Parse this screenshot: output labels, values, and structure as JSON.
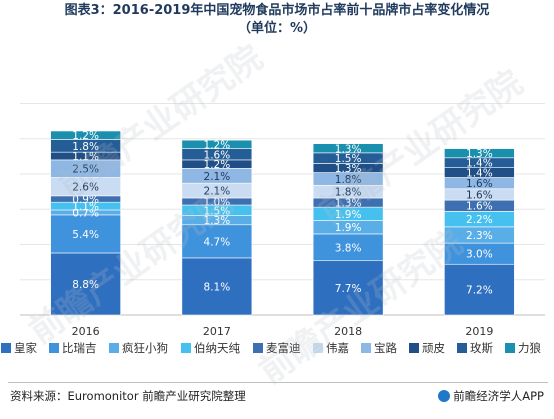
{
  "title_line1": "图表3：2016-2019年中国宠物食品市场市占率前十品牌市占率变化情况",
  "title_line2": "（单位：%）",
  "source": "资料来源：Euromonitor 前瞻产业研究院整理",
  "brand": "前瞻经济学人APP",
  "watermark": "前瞻产业研究院",
  "chart_data": {
    "type": "bar",
    "stacked": true,
    "categories": [
      "2016",
      "2017",
      "2018",
      "2019"
    ],
    "ylim": [
      0,
      30
    ],
    "grid": true,
    "legend_position": "bottom",
    "series": [
      {
        "name": "皇家",
        "color": "#2f6fbf",
        "values": [
          8.8,
          8.1,
          7.7,
          7.2
        ]
      },
      {
        "name": "比瑞吉",
        "color": "#3f92dc",
        "values": [
          5.4,
          4.7,
          3.8,
          3.0
        ]
      },
      {
        "name": "疯狂小狗",
        "color": "#5aaee8",
        "values": [
          0.7,
          1.3,
          1.9,
          2.3
        ]
      },
      {
        "name": "伯纳天纯",
        "color": "#46c0ee",
        "values": [
          1.1,
          1.5,
          1.9,
          2.2
        ]
      },
      {
        "name": "麦富迪",
        "color": "#3e6fb0",
        "values": [
          0.9,
          1.0,
          1.3,
          1.6
        ]
      },
      {
        "name": "伟嘉",
        "color": "#c9dcf2",
        "values": [
          2.6,
          2.1,
          1.8,
          1.6
        ]
      },
      {
        "name": "宝路",
        "color": "#8fb7e4",
        "values": [
          2.5,
          2.1,
          1.8,
          1.6
        ]
      },
      {
        "name": "顽皮",
        "color": "#1f4f86",
        "values": [
          1.1,
          1.2,
          1.3,
          1.4
        ]
      },
      {
        "name": "玫斯",
        "color": "#255d97",
        "values": [
          1.8,
          1.6,
          1.5,
          1.4
        ]
      },
      {
        "name": "力狼",
        "color": "#1a8fae",
        "values": [
          1.2,
          1.2,
          1.3,
          1.3
        ]
      }
    ]
  }
}
